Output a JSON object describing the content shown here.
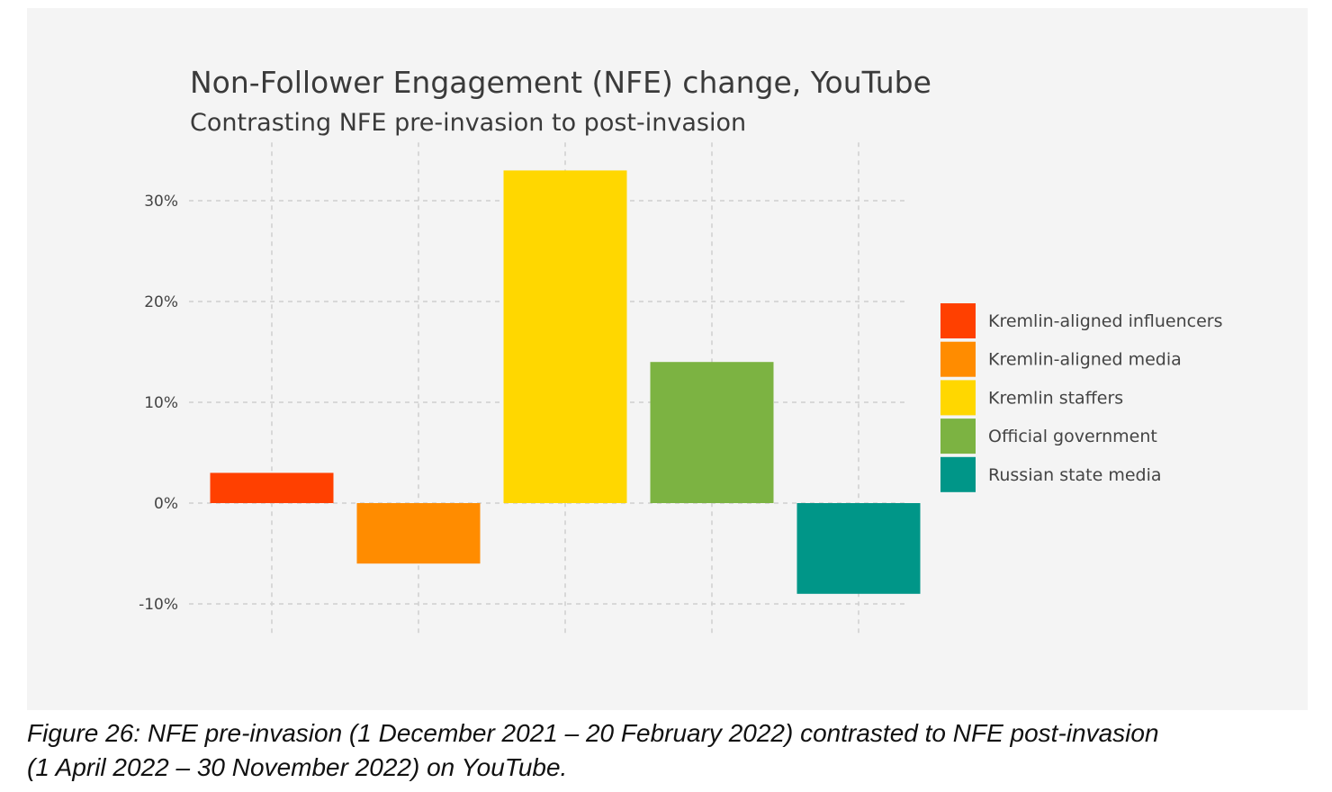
{
  "chart_data": {
    "type": "bar",
    "title": "Non-Follower Engagement (NFE) change, YouTube",
    "subtitle": "Contrasting NFE pre-invasion to post-invasion",
    "categories": [
      "Kremlin-aligned influencers",
      "Kremlin-aligned media",
      "Kremlin staffers",
      "Official government",
      "Russian state media"
    ],
    "values": [
      3,
      -6,
      33,
      14,
      -9
    ],
    "colors": [
      "#ff4000",
      "#ff8c00",
      "#ffd700",
      "#7cb342",
      "#009688"
    ],
    "value_unit": "%",
    "ylim": [
      -12,
      34
    ],
    "yticks": [
      -10,
      0,
      10,
      20,
      30
    ],
    "ytick_labels": [
      "-10%",
      "0%",
      "10%",
      "20%",
      "30%"
    ],
    "xlabel": "",
    "ylabel": "",
    "grid": true,
    "legend_position": "right"
  },
  "caption": {
    "line1": "Figure 26: NFE pre-invasion (1 December 2021 – 20 February 2022) contrasted to NFE post-invasion",
    "line2": "(1 April 2022 – 30 November 2022) on YouTube."
  }
}
